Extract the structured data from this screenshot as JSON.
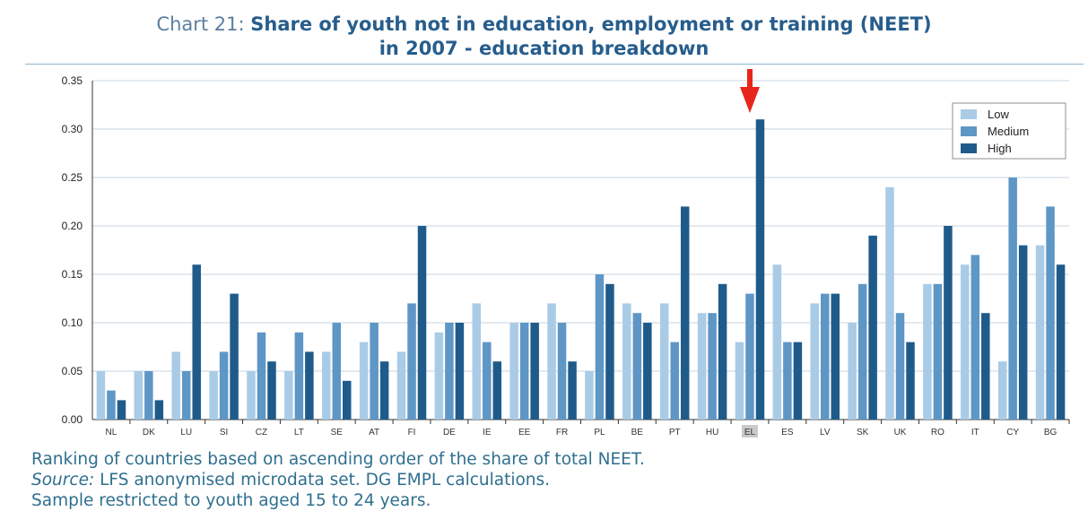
{
  "title": {
    "prefix": "Chart 21:",
    "line1": "Share of youth not in education, employment or training (NEET)",
    "line2": "in 2007 - education breakdown"
  },
  "notes": {
    "ranking": "Ranking of countries based on ascending order of the share of total NEET.",
    "source_label": "Source:",
    "source_text": " LFS anonymised microdata set. DG EMPL calculations.",
    "sample": "Sample restricted to youth aged 15 to 24 years."
  },
  "highlight": {
    "category": "EL",
    "marker": "red-down-arrow",
    "color": "#e8251b"
  },
  "colors": {
    "Low": "#a9cbe6",
    "Medium": "#5e96c6",
    "High": "#1f5b8a",
    "axis": "#333333",
    "grid": "#c8d6e2"
  },
  "chart_data": {
    "type": "bar",
    "categories": [
      "NL",
      "DK",
      "LU",
      "SI",
      "CZ",
      "LT",
      "SE",
      "AT",
      "FI",
      "DE",
      "IE",
      "EE",
      "FR",
      "PL",
      "BE",
      "PT",
      "HU",
      "EL",
      "ES",
      "LV",
      "SK",
      "UK",
      "RO",
      "IT",
      "CY",
      "BG"
    ],
    "series": [
      {
        "name": "Low",
        "values": [
          0.05,
          0.05,
          0.07,
          0.05,
          0.05,
          0.05,
          0.07,
          0.08,
          0.07,
          0.09,
          0.12,
          0.1,
          0.12,
          0.05,
          0.12,
          0.12,
          0.11,
          0.08,
          0.16,
          0.12,
          0.1,
          0.24,
          0.14,
          0.16,
          0.06,
          0.18
        ]
      },
      {
        "name": "Medium",
        "values": [
          0.03,
          0.05,
          0.05,
          0.07,
          0.09,
          0.09,
          0.1,
          0.1,
          0.12,
          0.1,
          0.08,
          0.1,
          0.1,
          0.15,
          0.11,
          0.08,
          0.11,
          0.13,
          0.08,
          0.13,
          0.14,
          0.11,
          0.14,
          0.17,
          0.25,
          0.22
        ]
      },
      {
        "name": "High",
        "values": [
          0.02,
          0.02,
          0.16,
          0.13,
          0.06,
          0.07,
          0.04,
          0.06,
          0.2,
          0.1,
          0.06,
          0.1,
          0.06,
          0.14,
          0.1,
          0.22,
          0.14,
          0.31,
          0.08,
          0.13,
          0.19,
          0.08,
          0.2,
          0.11,
          0.18,
          0.16
        ]
      }
    ],
    "ylim": [
      0,
      0.35
    ],
    "yticks": [
      "0.00",
      "0.05",
      "0.10",
      "0.15",
      "0.20",
      "0.25",
      "0.30",
      "0.35"
    ],
    "grid": true,
    "legend": "top-right"
  }
}
